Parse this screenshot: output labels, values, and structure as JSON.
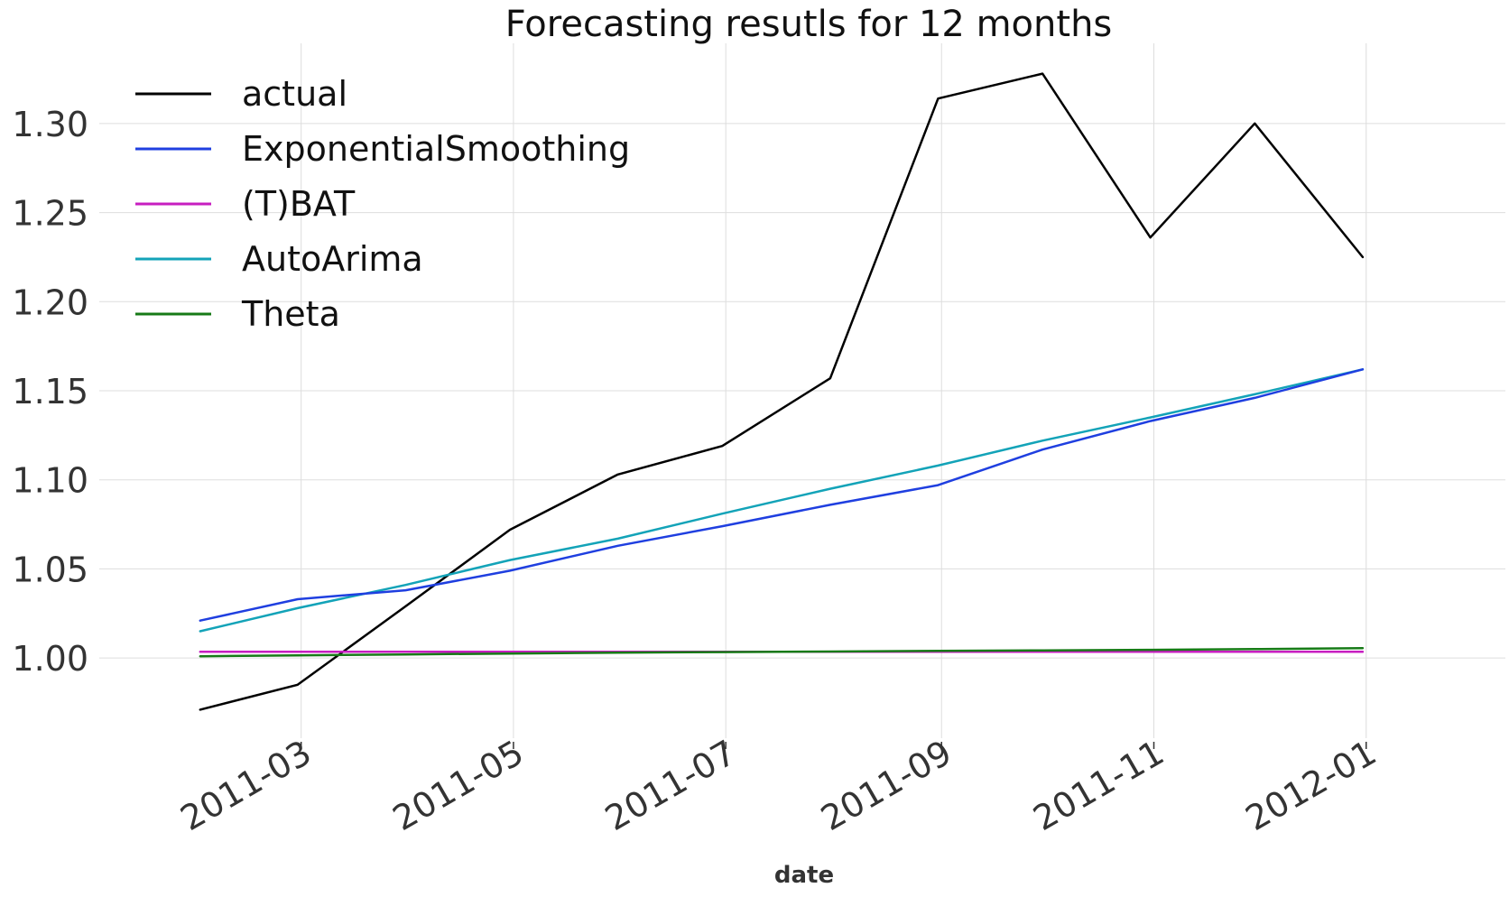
{
  "chart_data": {
    "type": "line",
    "title": "Forecasting resutls for 12 months",
    "xlabel": "date",
    "ylabel": "",
    "x": [
      "2011-01-31",
      "2011-02-28",
      "2011-03-31",
      "2011-04-30",
      "2011-05-31",
      "2011-06-30",
      "2011-07-31",
      "2011-08-31",
      "2011-09-30",
      "2011-10-31",
      "2011-11-30",
      "2011-12-31"
    ],
    "xlim": [
      "2011-01-02",
      "2012-02-10"
    ],
    "ylim": [
      0.955,
      1.345
    ],
    "xticks": [
      {
        "date": "2011-03-01",
        "label": "2011-03"
      },
      {
        "date": "2011-05-01",
        "label": "2011-05"
      },
      {
        "date": "2011-07-01",
        "label": "2011-07"
      },
      {
        "date": "2011-09-01",
        "label": "2011-09"
      },
      {
        "date": "2011-11-01",
        "label": "2011-11"
      },
      {
        "date": "2012-01-01",
        "label": "2012-01"
      }
    ],
    "yticks": [
      {
        "value": 1.0,
        "label": "1.00"
      },
      {
        "value": 1.05,
        "label": "1.05"
      },
      {
        "value": 1.1,
        "label": "1.10"
      },
      {
        "value": 1.15,
        "label": "1.15"
      },
      {
        "value": 1.2,
        "label": "1.20"
      },
      {
        "value": 1.25,
        "label": "1.25"
      },
      {
        "value": 1.3,
        "label": "1.30"
      }
    ],
    "grid": true,
    "legend_position": "top-left",
    "series": [
      {
        "name": "actual",
        "color": "#000000",
        "values": [
          0.971,
          0.985,
          1.029,
          1.072,
          1.103,
          1.119,
          1.157,
          1.314,
          1.328,
          1.236,
          1.3,
          1.225
        ]
      },
      {
        "name": " ExponentialSmoothing",
        "color": "#1f3fe0",
        "values": [
          1.021,
          1.033,
          1.038,
          1.049,
          1.063,
          1.074,
          1.086,
          1.097,
          1.117,
          1.133,
          1.146,
          1.162
        ]
      },
      {
        "name": "(T)BAT",
        "color": "#c71ec0",
        "values": [
          1.0035,
          1.0035,
          1.0035,
          1.0035,
          1.0035,
          1.0035,
          1.0035,
          1.0035,
          1.0035,
          1.0035,
          1.0035,
          1.0035
        ]
      },
      {
        "name": "AutoArima",
        "color": "#13a3b8",
        "values": [
          1.015,
          1.028,
          1.041,
          1.055,
          1.067,
          1.081,
          1.095,
          1.108,
          1.122,
          1.135,
          1.148,
          1.162
        ]
      },
      {
        "name": "Theta",
        "color": "#177a17",
        "values": [
          1.001,
          1.0015,
          1.002,
          1.0025,
          1.003,
          1.0033,
          1.0036,
          1.004,
          1.0043,
          1.0046,
          1.005,
          1.0055
        ]
      }
    ]
  }
}
